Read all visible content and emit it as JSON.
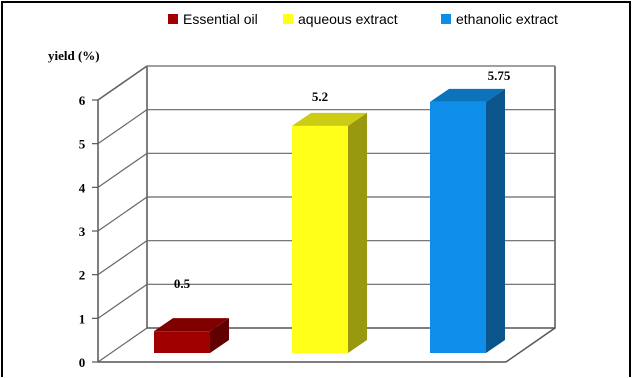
{
  "chart_data": {
    "type": "bar",
    "ylabel": "yield (%)",
    "ylim": [
      0,
      6
    ],
    "yticks": [
      0,
      1,
      2,
      3,
      4,
      5,
      6
    ],
    "grid": true,
    "legend_position": "top",
    "series": [
      {
        "name": "Essential oil",
        "value": 0.5,
        "label": "0.5",
        "color": "#a00000"
      },
      {
        "name": "aqueous extract",
        "value": 5.2,
        "label": "5.2",
        "color": "#ffff1a"
      },
      {
        "name": "ethanolic extract",
        "value": 5.75,
        "label": "5.75",
        "color": "#0f8ee9"
      }
    ]
  }
}
